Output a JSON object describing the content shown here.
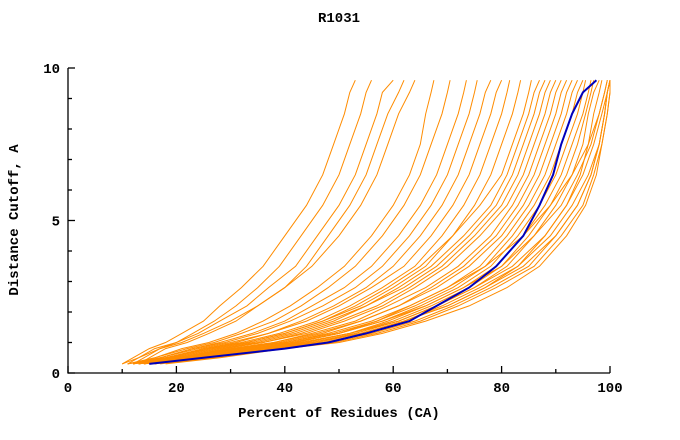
{
  "chart_data": {
    "type": "line",
    "title": "R1031",
    "xlabel": "Percent of Residues (CA)",
    "ylabel": "Distance Cutoff, A",
    "xlim": [
      0,
      100
    ],
    "ylim": [
      0,
      10
    ],
    "x_ticks": [
      0,
      20,
      40,
      60,
      80,
      100
    ],
    "x_minor_step": 10,
    "y_ticks": [
      0,
      5,
      10
    ],
    "y_minor_step": 1,
    "grid": false,
    "legend": "none",
    "colors": {
      "models": "#FF8C00",
      "best_model": "#0000BB",
      "axis": "#000000"
    },
    "cutoff_levels": [
      0.3,
      0.5,
      0.8,
      1.0,
      1.3,
      1.7,
      2.2,
      2.8,
      3.5,
      4.5,
      5.5,
      6.5,
      7.5,
      8.5,
      9.2,
      9.6
    ],
    "model_curves_percent_at_cutoff": [
      [
        10,
        12,
        15,
        18,
        21,
        25,
        28,
        32,
        36,
        40,
        44,
        47,
        49,
        51,
        52,
        53
      ],
      [
        12,
        14,
        17,
        20,
        23,
        27,
        31,
        35,
        39,
        43,
        47,
        50,
        52,
        54,
        55,
        56
      ],
      [
        11,
        13,
        16,
        20,
        24,
        28,
        33,
        37,
        42,
        46,
        50,
        53,
        55,
        57,
        58,
        60
      ],
      [
        13,
        15,
        18,
        22,
        26,
        31,
        35,
        40,
        44,
        48,
        52,
        55,
        57,
        59,
        61,
        62
      ],
      [
        10,
        13,
        17,
        21,
        25,
        30,
        35,
        40,
        45,
        50,
        54,
        57,
        59,
        61,
        63,
        64
      ],
      [
        12,
        16,
        21,
        26,
        31,
        36,
        41,
        46,
        51,
        56,
        60,
        63,
        65,
        66,
        67,
        67.5
      ],
      [
        11,
        16,
        22,
        27,
        32,
        38,
        43,
        48,
        53,
        58,
        62,
        65,
        67,
        69,
        70,
        70.5
      ],
      [
        13,
        17,
        23,
        28,
        34,
        40,
        45,
        51,
        56,
        61,
        65,
        68,
        70,
        72,
        73,
        73.5
      ],
      [
        12,
        17,
        23,
        29,
        35,
        41,
        47,
        53,
        58,
        63,
        67,
        70,
        72,
        74,
        75,
        75.5
      ],
      [
        14,
        19,
        25,
        31,
        37,
        43,
        49,
        55,
        60,
        65,
        69,
        72,
        74,
        76,
        77,
        78
      ],
      [
        11,
        17,
        24,
        30,
        37,
        44,
        50,
        56,
        62,
        67,
        71,
        74,
        76,
        78,
        79,
        80
      ],
      [
        13,
        18,
        25,
        32,
        39,
        46,
        52,
        58,
        64,
        69,
        73,
        76,
        78,
        80,
        81,
        81.5
      ],
      [
        12,
        18,
        26,
        33,
        40,
        47,
        54,
        60,
        66,
        71,
        75,
        78,
        80,
        82,
        83,
        83.5
      ],
      [
        12,
        18,
        26,
        33,
        40,
        47,
        53,
        59,
        65,
        71,
        76,
        80,
        82,
        84,
        85,
        85.5
      ],
      [
        13,
        19,
        28,
        35,
        42,
        49,
        55,
        61,
        67,
        73,
        78,
        81,
        83,
        85,
        86,
        87
      ],
      [
        11,
        18,
        27,
        34,
        41,
        48,
        55,
        62,
        68,
        74,
        79,
        82,
        84,
        86,
        87,
        88
      ],
      [
        14,
        20,
        29,
        36,
        43,
        50,
        57,
        63,
        69,
        75,
        80,
        83,
        85,
        87,
        88,
        89
      ],
      [
        12,
        19,
        28,
        36,
        44,
        51,
        58,
        64,
        70,
        76,
        81,
        84,
        86,
        88,
        89,
        90
      ],
      [
        13,
        20,
        30,
        38,
        45,
        53,
        59,
        66,
        72,
        78,
        82,
        85,
        87,
        89,
        90,
        91
      ],
      [
        15,
        22,
        31,
        39,
        47,
        54,
        61,
        67,
        73,
        79,
        83,
        86,
        88,
        90,
        91,
        92
      ],
      [
        12,
        20,
        30,
        38,
        46,
        54,
        61,
        68,
        74,
        80,
        84,
        87,
        89,
        91,
        92,
        93
      ],
      [
        14,
        21,
        32,
        40,
        48,
        56,
        63,
        70,
        76,
        81,
        85,
        88,
        90,
        92,
        93,
        94
      ],
      [
        13,
        21,
        31,
        40,
        49,
        57,
        64,
        71,
        77,
        82,
        86,
        89,
        91,
        93,
        94,
        95
      ],
      [
        16,
        23,
        33,
        42,
        50,
        58,
        65,
        72,
        78,
        83,
        87,
        90,
        92,
        94,
        95,
        95.5
      ],
      [
        12,
        20,
        31,
        41,
        50,
        58,
        66,
        73,
        79,
        84,
        88,
        91,
        93,
        95,
        96,
        96.5
      ],
      [
        15,
        23,
        34,
        43,
        52,
        60,
        67,
        74,
        80,
        85,
        89,
        92,
        94,
        95.5,
        96.5,
        97
      ],
      [
        13,
        22,
        33,
        43,
        52,
        61,
        68,
        75,
        81,
        86,
        90,
        93,
        95,
        96,
        97,
        98
      ],
      [
        16,
        24,
        35,
        45,
        54,
        62,
        70,
        77,
        83,
        88,
        92,
        94.5,
        96,
        97,
        98,
        98.5
      ],
      [
        14,
        22,
        33,
        42,
        50,
        57,
        63,
        70,
        77,
        84,
        89,
        93,
        96,
        98,
        99,
        99.5
      ],
      [
        15,
        24,
        35,
        44,
        52,
        59,
        66,
        73,
        80,
        86,
        91,
        94,
        96.5,
        98,
        99,
        99.5
      ],
      [
        13,
        23,
        34,
        45,
        53,
        61,
        68,
        75,
        82,
        88,
        92,
        95,
        97,
        98.5,
        99.5,
        100
      ],
      [
        16,
        25,
        37,
        47,
        55,
        62,
        69,
        76,
        83,
        89,
        93,
        96,
        98,
        99,
        99.5,
        100
      ],
      [
        14,
        24,
        36,
        46,
        54,
        62,
        70,
        77,
        84,
        90,
        94,
        96.5,
        98,
        99,
        99.5,
        100
      ],
      [
        17,
        27,
        39,
        49,
        57,
        65,
        72,
        79,
        86,
        91,
        95,
        97,
        98.5,
        99.5,
        100,
        100
      ],
      [
        15,
        26,
        38,
        48,
        56,
        64,
        71,
        78,
        85,
        90,
        94,
        96.5,
        98,
        99,
        99.5,
        100
      ],
      [
        18,
        28,
        40,
        50,
        58,
        66,
        74,
        81,
        87,
        92,
        95.5,
        97.5,
        98.5,
        99.5,
        100,
        100
      ]
    ],
    "best_model_percent_at_cutoff": [
      15,
      25,
      40,
      48,
      55,
      63,
      68,
      74,
      79,
      84,
      87,
      89.5,
      91,
      93,
      95,
      97.5
    ]
  }
}
